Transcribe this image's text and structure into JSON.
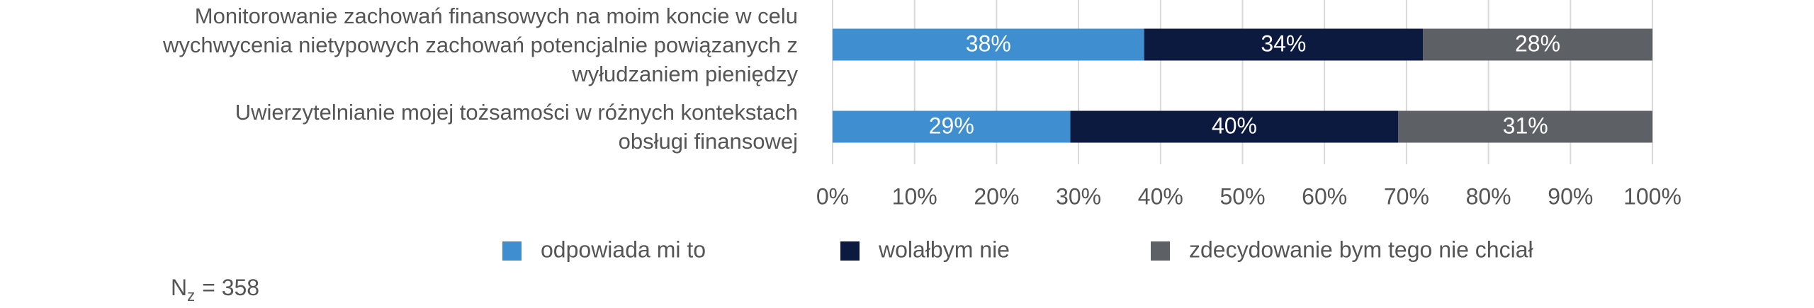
{
  "chart_data": {
    "type": "stacked-barh",
    "categories": [
      "Monitorowanie zachowań finansowych na moim koncie w celu wychwycenia nietypowych zachowań potencjalnie powiązanych z wyłudzaniem pieniędzy",
      "Uwierzytelnianie mojej tożsamości w różnych kontekstach obsługi finansowej"
    ],
    "series": [
      {
        "name": "odpowiada mi to",
        "color": "#3e8ed0",
        "values": [
          38,
          29
        ],
        "value_labels": [
          "38%",
          "29%"
        ]
      },
      {
        "name": "wolałbym nie",
        "color": "#0b1a3e",
        "values": [
          34,
          40
        ],
        "value_labels": [
          "34%",
          "40%"
        ]
      },
      {
        "name": "zdecydowanie bym tego nie chciał",
        "color": "#5d6065",
        "values": [
          28,
          31
        ],
        "value_labels": [
          "28%",
          "31%"
        ]
      }
    ],
    "xlim": [
      0,
      100
    ],
    "xticks": [
      {
        "value": 0,
        "label": "0%"
      },
      {
        "value": 10,
        "label": "10%"
      },
      {
        "value": 20,
        "label": "20%"
      },
      {
        "value": 30,
        "label": "30%"
      },
      {
        "value": 40,
        "label": "40%"
      },
      {
        "value": 50,
        "label": "50%"
      },
      {
        "value": 60,
        "label": "60%"
      },
      {
        "value": 70,
        "label": "70%"
      },
      {
        "value": 80,
        "label": "80%"
      },
      {
        "value": 90,
        "label": "90%"
      },
      {
        "value": 100,
        "label": "100%"
      }
    ],
    "grid": true,
    "note": {
      "symbol": "N",
      "subscript": "z",
      "text": "= 358"
    }
  }
}
